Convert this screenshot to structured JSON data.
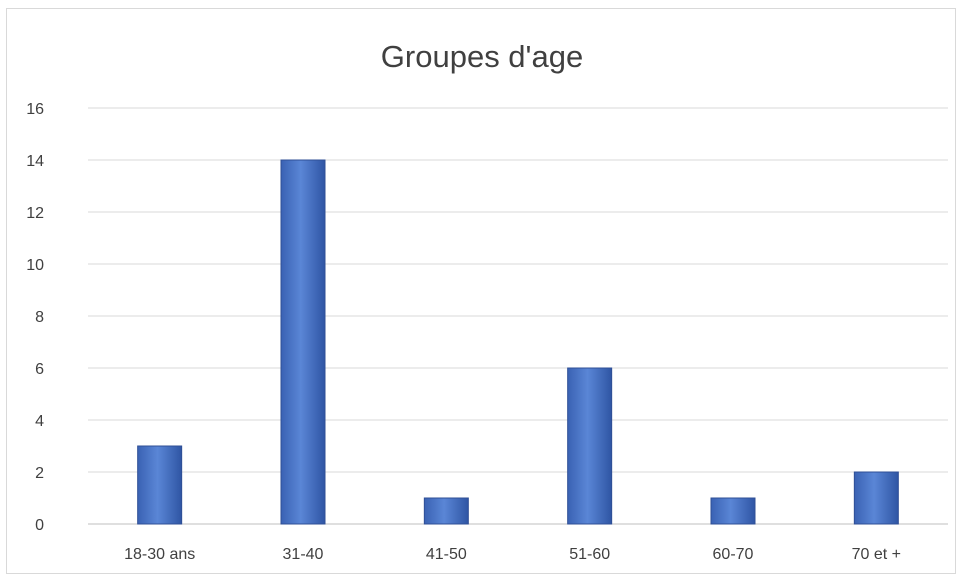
{
  "chart_data": {
    "type": "bar",
    "title": "Groupes d'age",
    "categories": [
      "18-30 ans",
      "31-40",
      "41-50",
      "51-60",
      "60-70",
      "70 et +"
    ],
    "series": [
      {
        "values": [
          3,
          14,
          1,
          6,
          1,
          2
        ]
      }
    ],
    "ylim": [
      0,
      16
    ],
    "yticks": [
      0,
      2,
      4,
      6,
      8,
      10,
      12,
      14,
      16
    ],
    "grid": true,
    "legend": "none",
    "colors": {
      "bar": "#4472c4",
      "bar_edge": "#2f4f96",
      "grid": "#d9d9d9",
      "axis": "#bfbfbf",
      "text": "#404040"
    }
  }
}
